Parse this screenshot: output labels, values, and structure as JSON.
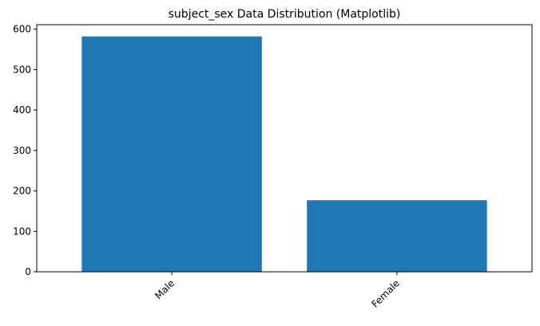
{
  "chart_data": {
    "type": "bar",
    "title": "subject_sex Data Distribution (Matplotlib)",
    "xlabel": "",
    "ylabel": "",
    "categories": [
      "Male",
      "Female"
    ],
    "values": [
      582,
      177
    ],
    "ylim": [
      0,
      611
    ],
    "yticks": [
      0,
      100,
      200,
      300,
      400,
      500,
      600
    ],
    "x_tick_rotation_deg": 45,
    "grid": false,
    "legend": "none",
    "bar_color": "#1f77b4"
  }
}
